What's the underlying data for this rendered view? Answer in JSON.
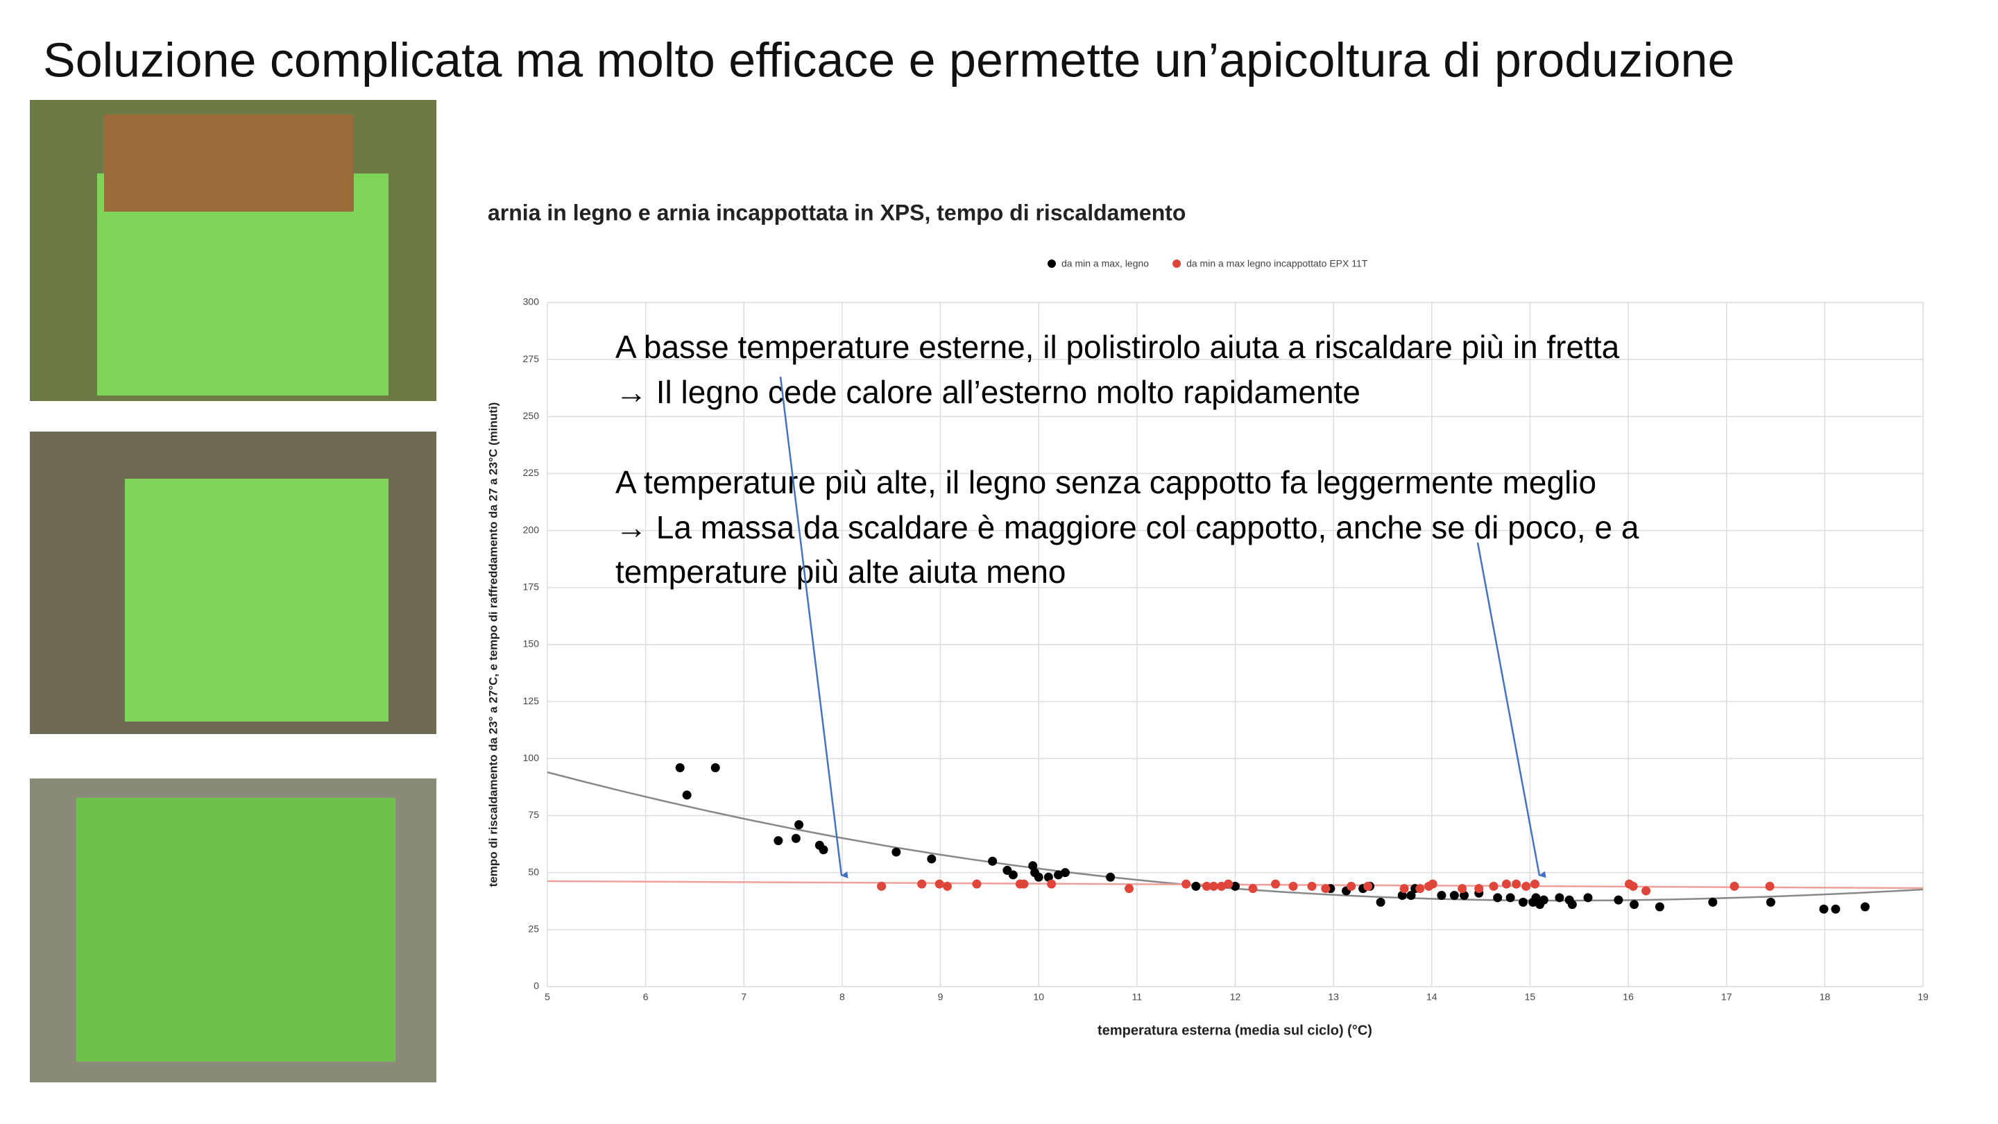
{
  "slide_title": "Soluzione complicata ma molto efficace e permette un’apicoltura di produzione",
  "chart_data": {
    "type": "scatter",
    "title": "arnia in legno e arnia incappottata in XPS, tempo di riscaldamento",
    "x_label": "temperatura esterna (media sul ciclo) (°C)",
    "y_label": "tempo di riscaldamento da 23° a 27°C, e tempo di raffreddamento da 27 a 23°C (minuti)",
    "xlim": [
      5,
      19
    ],
    "xticks": [
      5,
      6,
      7,
      8,
      9,
      10,
      11,
      12,
      13,
      14,
      15,
      16,
      17,
      18,
      19
    ],
    "ylim": [
      0,
      300
    ],
    "yticks": [
      0,
      25,
      50,
      75,
      100,
      125,
      150,
      175,
      200,
      225,
      250,
      275,
      300
    ],
    "grid": true,
    "legend": "top",
    "series": [
      {
        "name": "da min a max, legno",
        "color": "#000000",
        "x": [
          6.35,
          6.42,
          6.71,
          7.35,
          7.53,
          7.56,
          7.77,
          7.81,
          8.55,
          8.91,
          9.53,
          9.68,
          9.74,
          9.94,
          9.96,
          10.0,
          10.1,
          10.2,
          10.27,
          10.73,
          11.6,
          12.0,
          12.97,
          13.13,
          13.3,
          13.37,
          13.48,
          13.7,
          13.79,
          13.83,
          14.1,
          14.23,
          14.33,
          14.48,
          14.67,
          14.8,
          14.93,
          15.03,
          15.06,
          15.14,
          15.1,
          15.3,
          15.4,
          15.43,
          15.59,
          15.9,
          16.06,
          16.32,
          16.86,
          17.45,
          17.99,
          18.11,
          18.41
        ],
        "values": [
          96,
          84,
          96,
          64,
          65,
          71,
          62,
          60,
          59,
          56,
          55,
          51,
          49,
          53,
          50,
          48,
          48,
          49,
          50,
          48,
          44,
          44,
          43,
          42,
          43,
          44,
          37,
          40,
          40,
          43,
          40,
          40,
          40,
          41,
          39,
          39,
          37,
          37,
          39,
          38,
          36,
          39,
          38,
          36,
          39,
          38,
          36,
          35,
          37,
          37,
          34,
          34,
          35
        ]
      },
      {
        "name": "da min a max legno incappottato EPX 11T",
        "color": "#e0453a",
        "x": [
          8.4,
          8.81,
          8.99,
          9.07,
          9.37,
          9.81,
          9.85,
          10.13,
          10.92,
          11.5,
          11.71,
          11.78,
          11.86,
          11.93,
          12.18,
          12.41,
          12.59,
          12.78,
          12.92,
          13.18,
          13.35,
          13.72,
          13.88,
          13.97,
          14.01,
          14.31,
          14.48,
          14.63,
          14.76,
          14.86,
          14.96,
          15.05,
          16.01,
          16.05,
          16.18,
          17.08,
          17.44
        ],
        "values": [
          44,
          45,
          45,
          44,
          45,
          45,
          45,
          45,
          43,
          45,
          44,
          44,
          44,
          45,
          43,
          45,
          44,
          44,
          43,
          44,
          44,
          43,
          43,
          44,
          45,
          43,
          43,
          44,
          45,
          45,
          44,
          45,
          45,
          44,
          42,
          44,
          44
        ]
      }
    ],
    "annotations": [
      "A basse temperature esterne, il polistirolo aiuta a riscaldare più in fretta",
      "→ Il legno cede calore all’esterno molto rapidamente",
      "A temperature più alte, il legno senza cappotto fa leggermente meglio",
      "→ La massa da scaldare è maggiore col cappotto, anche se di poco, e a",
      "temperature più alte aiuta meno"
    ]
  }
}
